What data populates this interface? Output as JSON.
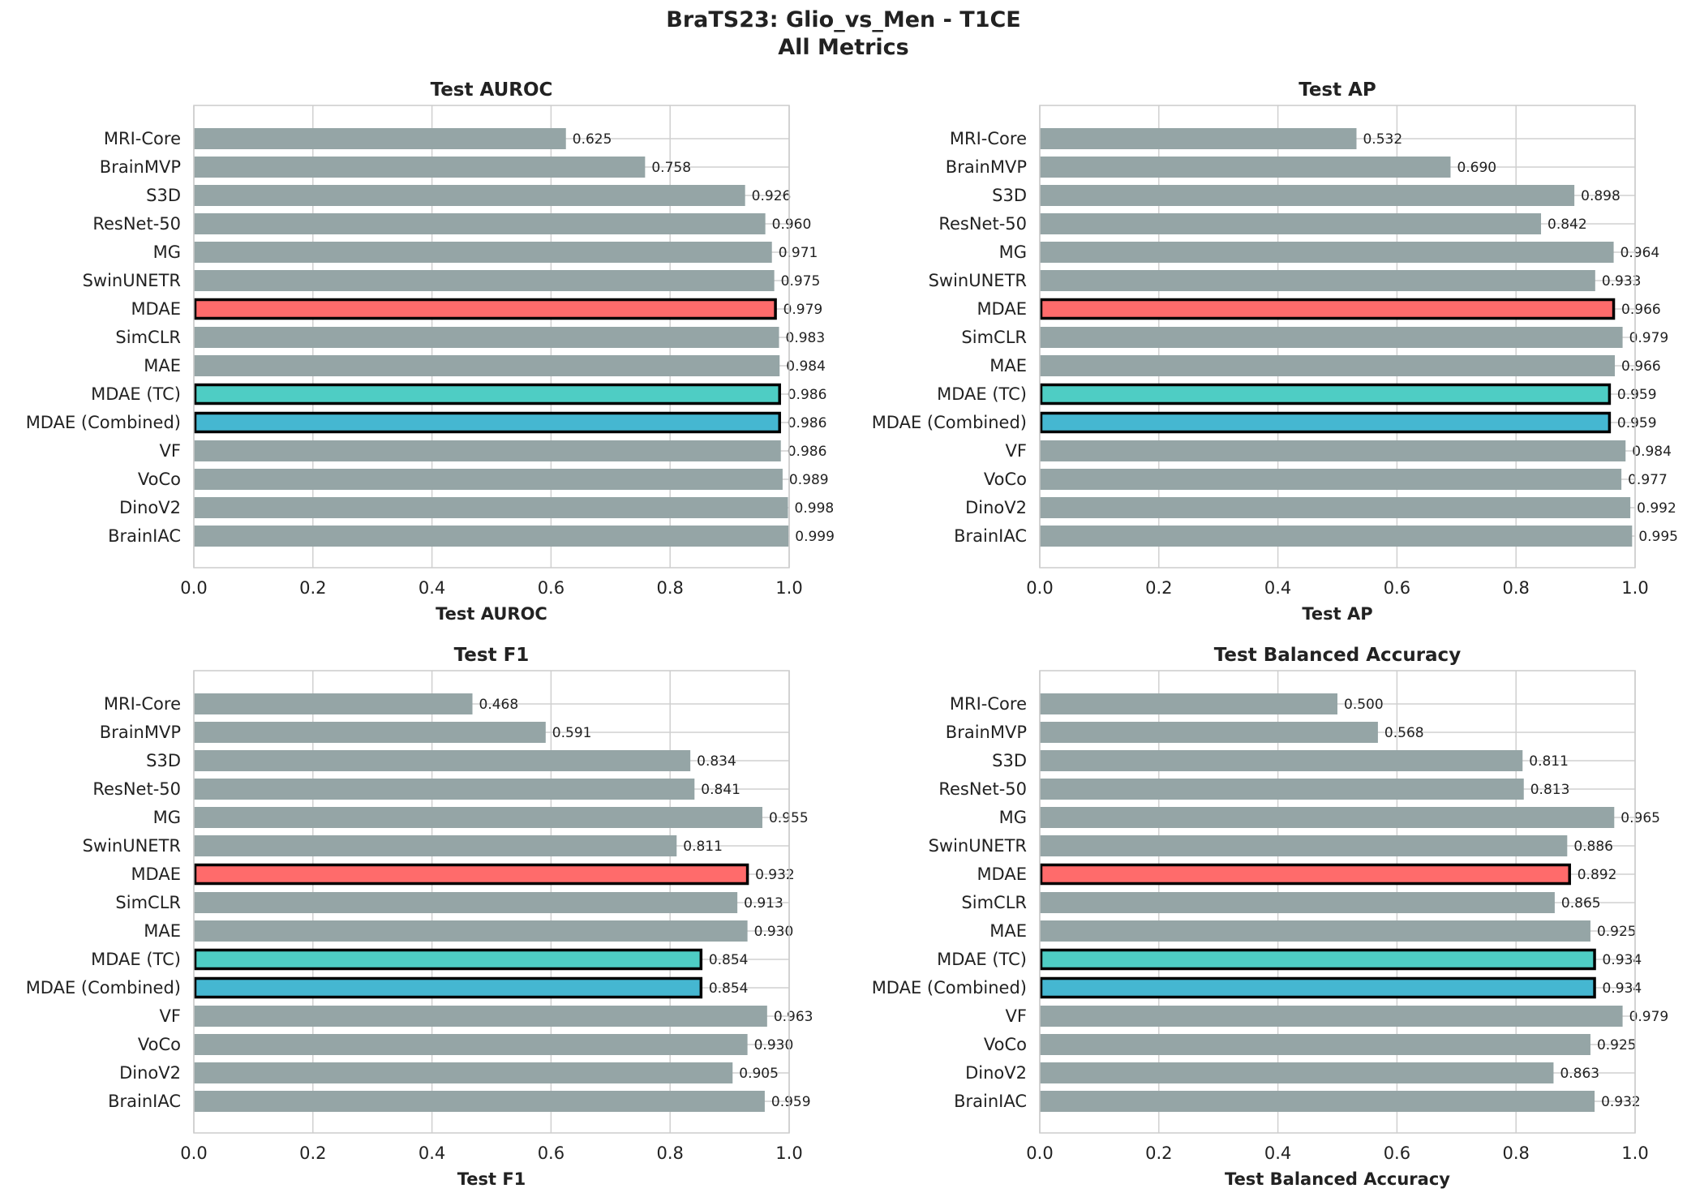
{
  "figure": {
    "title_line1": "BraTS23: Glio_vs_Men - T1CE",
    "title_line2": "All Metrics"
  },
  "colors": {
    "default": "#95a5a6",
    "MDAE": "#ff6b6b",
    "MDAE (TC)": "#4ecdc4",
    "MDAE (Combined)": "#45b7d1",
    "highlight_edge": "#000000",
    "grid": "#d0d0d0",
    "spine": "#cccccc"
  },
  "chart_data": [
    {
      "type": "bar",
      "orientation": "horizontal",
      "title": "Test AUROC",
      "xlabel": "Test AUROC",
      "xlim": [
        0,
        1
      ],
      "xticks": [
        "0.0",
        "0.2",
        "0.4",
        "0.6",
        "0.8",
        "1.0"
      ],
      "categories": [
        "MRI-Core",
        "BrainMVP",
        "S3D",
        "ResNet-50",
        "MG",
        "SwinUNETR",
        "MDAE",
        "SimCLR",
        "MAE",
        "MDAE (TC)",
        "MDAE (Combined)",
        "VF",
        "VoCo",
        "DinoV2",
        "BrainIAC"
      ],
      "values": [
        0.625,
        0.758,
        0.926,
        0.96,
        0.971,
        0.975,
        0.979,
        0.983,
        0.984,
        0.986,
        0.986,
        0.986,
        0.989,
        0.998,
        0.999
      ],
      "labels": [
        "0.625",
        "0.758",
        "0.926",
        "0.960",
        "0.971",
        "0.975",
        "0.979",
        "0.983",
        "0.984",
        "0.986",
        "0.986",
        "0.986",
        "0.989",
        "0.998",
        "0.999"
      ],
      "grid": true
    },
    {
      "type": "bar",
      "orientation": "horizontal",
      "title": "Test AP",
      "xlabel": "Test AP",
      "xlim": [
        0,
        1
      ],
      "xticks": [
        "0.0",
        "0.2",
        "0.4",
        "0.6",
        "0.8",
        "1.0"
      ],
      "categories": [
        "MRI-Core",
        "BrainMVP",
        "S3D",
        "ResNet-50",
        "MG",
        "SwinUNETR",
        "MDAE",
        "SimCLR",
        "MAE",
        "MDAE (TC)",
        "MDAE (Combined)",
        "VF",
        "VoCo",
        "DinoV2",
        "BrainIAC"
      ],
      "values": [
        0.532,
        0.69,
        0.898,
        0.842,
        0.964,
        0.933,
        0.966,
        0.979,
        0.966,
        0.959,
        0.959,
        0.984,
        0.977,
        0.992,
        0.995
      ],
      "labels": [
        "0.532",
        "0.690",
        "0.898",
        "0.842",
        "0.964",
        "0.933",
        "0.966",
        "0.979",
        "0.966",
        "0.959",
        "0.959",
        "0.984",
        "0.977",
        "0.992",
        "0.995"
      ],
      "grid": true
    },
    {
      "type": "bar",
      "orientation": "horizontal",
      "title": "Test F1",
      "xlabel": "Test F1",
      "xlim": [
        0,
        1
      ],
      "xticks": [
        "0.0",
        "0.2",
        "0.4",
        "0.6",
        "0.8",
        "1.0"
      ],
      "categories": [
        "MRI-Core",
        "BrainMVP",
        "S3D",
        "ResNet-50",
        "MG",
        "SwinUNETR",
        "MDAE",
        "SimCLR",
        "MAE",
        "MDAE (TC)",
        "MDAE (Combined)",
        "VF",
        "VoCo",
        "DinoV2",
        "BrainIAC"
      ],
      "values": [
        0.468,
        0.591,
        0.834,
        0.841,
        0.955,
        0.811,
        0.932,
        0.913,
        0.93,
        0.854,
        0.854,
        0.963,
        0.93,
        0.905,
        0.959
      ],
      "labels": [
        "0.468",
        "0.591",
        "0.834",
        "0.841",
        "0.955",
        "0.811",
        "0.932",
        "0.913",
        "0.930",
        "0.854",
        "0.854",
        "0.963",
        "0.930",
        "0.905",
        "0.959"
      ],
      "grid": true
    },
    {
      "type": "bar",
      "orientation": "horizontal",
      "title": "Test Balanced Accuracy",
      "xlabel": "Test Balanced Accuracy",
      "xlim": [
        0,
        1
      ],
      "xticks": [
        "0.0",
        "0.2",
        "0.4",
        "0.6",
        "0.8",
        "1.0"
      ],
      "categories": [
        "MRI-Core",
        "BrainMVP",
        "S3D",
        "ResNet-50",
        "MG",
        "SwinUNETR",
        "MDAE",
        "SimCLR",
        "MAE",
        "MDAE (TC)",
        "MDAE (Combined)",
        "VF",
        "VoCo",
        "DinoV2",
        "BrainIAC"
      ],
      "values": [
        0.5,
        0.568,
        0.811,
        0.813,
        0.965,
        0.886,
        0.892,
        0.865,
        0.925,
        0.934,
        0.934,
        0.979,
        0.925,
        0.863,
        0.932
      ],
      "labels": [
        "0.500",
        "0.568",
        "0.811",
        "0.813",
        "0.965",
        "0.886",
        "0.892",
        "0.865",
        "0.925",
        "0.934",
        "0.934",
        "0.979",
        "0.925",
        "0.863",
        "0.932"
      ],
      "grid": true
    }
  ]
}
